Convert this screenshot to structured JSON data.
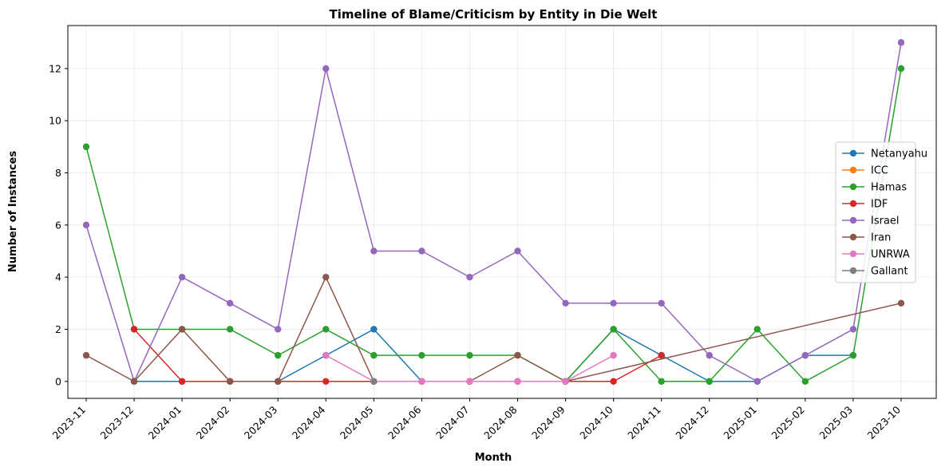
{
  "chart_data": {
    "type": "line",
    "title": "Timeline of Blame/Criticism by Entity in Die Welt",
    "xlabel": "Month",
    "ylabel": "Number of Instances",
    "categories": [
      "2023-11",
      "2023-12",
      "2024-01",
      "2024-02",
      "2024-03",
      "2024-04",
      "2024-05",
      "2024-06",
      "2024-07",
      "2024-08",
      "2024-09",
      "2024-10",
      "2024-11",
      "2024-12",
      "2025-01",
      "2025-02",
      "2025-03",
      "2023-10"
    ],
    "ylim": [
      -0.65,
      13.65
    ],
    "yticks": [
      0,
      2,
      4,
      6,
      8,
      10,
      12
    ],
    "grid": true,
    "legend_position": "center-right",
    "series": [
      {
        "name": "Netanyahu",
        "color": "#1f77b4",
        "values": [
          null,
          0,
          0,
          0,
          0,
          1,
          2,
          0,
          0,
          0,
          0,
          2,
          1,
          0,
          0,
          1,
          1,
          null
        ]
      },
      {
        "name": "ICC",
        "color": "#ff7f0e",
        "values": [
          null,
          null,
          null,
          null,
          null,
          null,
          null,
          null,
          null,
          null,
          null,
          null,
          null,
          null,
          null,
          null,
          null,
          null
        ]
      },
      {
        "name": "Hamas",
        "color": "#2ca02c",
        "values": [
          9,
          2,
          2,
          2,
          1,
          2,
          1,
          1,
          1,
          1,
          0,
          2,
          0,
          0,
          2,
          0,
          1,
          12
        ]
      },
      {
        "name": "IDF",
        "color": "#d62728",
        "values": [
          null,
          2,
          0,
          0,
          0,
          0,
          0,
          0,
          0,
          0,
          0,
          0,
          1,
          null,
          null,
          null,
          null,
          null
        ]
      },
      {
        "name": "Israel",
        "color": "#9467bd",
        "values": [
          6,
          0,
          4,
          3,
          2,
          12,
          5,
          5,
          4,
          5,
          3,
          3,
          3,
          1,
          0,
          1,
          2,
          13
        ]
      },
      {
        "name": "Iran",
        "color": "#8c564b",
        "values": [
          1,
          0,
          2,
          0,
          0,
          4,
          0,
          0,
          0,
          1,
          0,
          null,
          null,
          null,
          null,
          null,
          null,
          3
        ]
      },
      {
        "name": "UNRWA",
        "color": "#e377c2",
        "values": [
          null,
          null,
          null,
          null,
          null,
          1,
          0,
          0,
          0,
          0,
          0,
          1,
          null,
          null,
          null,
          null,
          null,
          null
        ]
      },
      {
        "name": "Gallant",
        "color": "#7f7f7f",
        "values": [
          null,
          null,
          null,
          null,
          null,
          null,
          0,
          null,
          null,
          null,
          null,
          null,
          null,
          null,
          null,
          null,
          null,
          null
        ]
      }
    ]
  }
}
